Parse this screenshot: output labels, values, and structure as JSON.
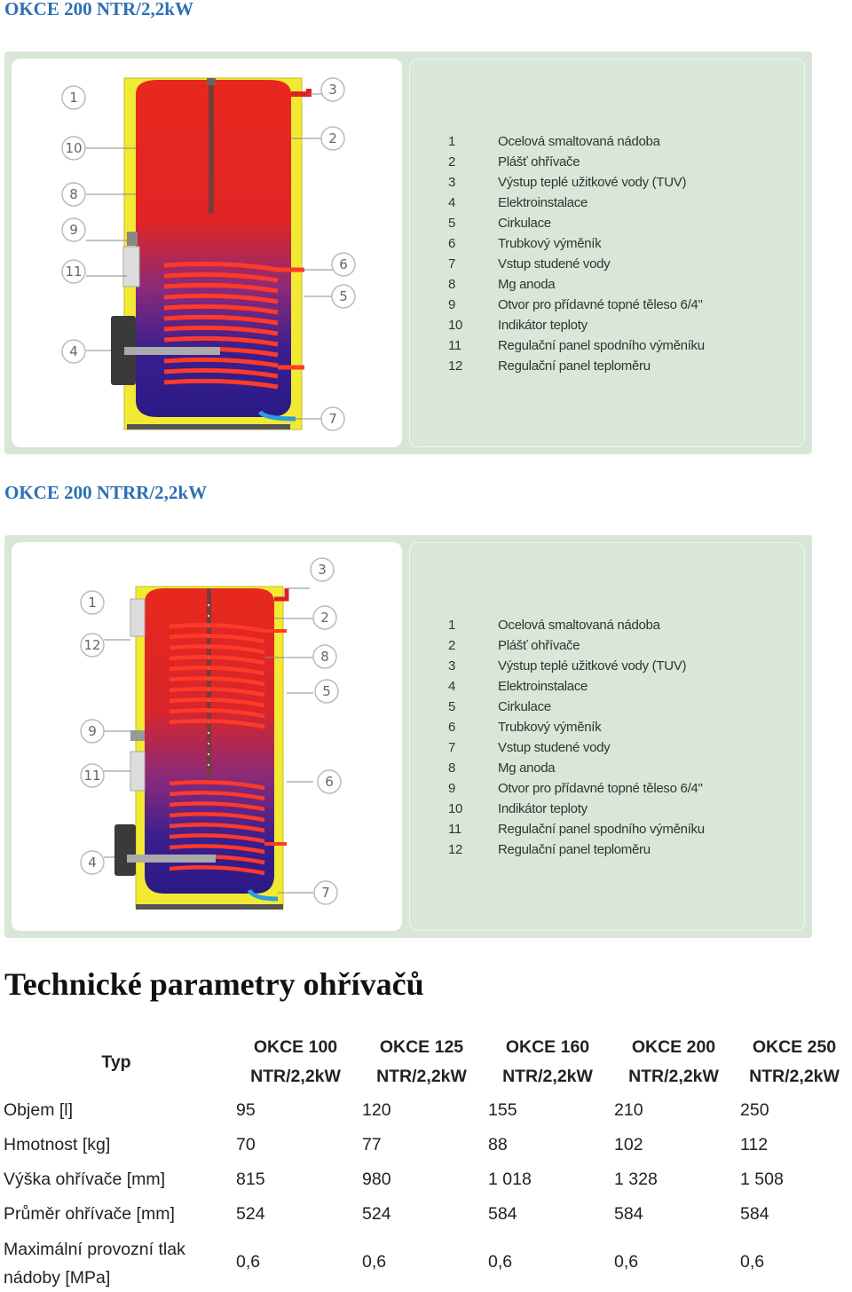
{
  "section1": {
    "heading": "OKCE 200 NTR/2,2kW",
    "callouts": [
      "1",
      "10",
      "8",
      "9",
      "11",
      "4",
      "3",
      "2",
      "6",
      "5",
      "7"
    ]
  },
  "section2": {
    "heading": "OKCE 200 NTRR/2,2kW",
    "callouts": [
      "1",
      "12",
      "9",
      "11",
      "4",
      "3",
      "2",
      "8",
      "5",
      "6",
      "7"
    ]
  },
  "legend": [
    {
      "num": "1",
      "text": "Ocelová smaltovaná nádoba"
    },
    {
      "num": "2",
      "text": "Plášť ohřívače"
    },
    {
      "num": "3",
      "text": "Výstup teplé užitkové vody (TUV)"
    },
    {
      "num": "4",
      "text": "Elektroinstalace"
    },
    {
      "num": "5",
      "text": "Cirkulace"
    },
    {
      "num": "6",
      "text": "Trubkový výměník"
    },
    {
      "num": "7",
      "text": "Vstup studené vody"
    },
    {
      "num": "8",
      "text": "Mg anoda"
    },
    {
      "num": "9",
      "text": "Otvor pro přídavné topné těleso 6/4\""
    },
    {
      "num": "10",
      "text": "Indikátor teploty"
    },
    {
      "num": "11",
      "text": "Regulační panel spodního výměníku"
    },
    {
      "num": "12",
      "text": "Regulační panel teploměru"
    }
  ],
  "params": {
    "title": "Technické parametry ohřívačů",
    "type_label": "Typ",
    "columns": [
      {
        "l1": "OKCE 100",
        "l2": "NTR/2,2kW"
      },
      {
        "l1": "OKCE 125",
        "l2": "NTR/2,2kW"
      },
      {
        "l1": "OKCE 160",
        "l2": "NTR/2,2kW"
      },
      {
        "l1": "OKCE 200",
        "l2": "NTR/2,2kW"
      },
      {
        "l1": "OKCE 250",
        "l2": "NTR/2,2kW"
      }
    ],
    "rows": [
      {
        "label": "Objem [l]",
        "values": [
          "95",
          "120",
          "155",
          "210",
          "250"
        ]
      },
      {
        "label": "Hmotnost [kg]",
        "values": [
          "70",
          "77",
          "88",
          "102",
          "112"
        ]
      },
      {
        "label": "Výška ohřívače [mm]",
        "values": [
          "815",
          "980",
          "1 018",
          "1 328",
          "1 508"
        ]
      },
      {
        "label": "Průměr ohřívače [mm]",
        "values": [
          "524",
          "524",
          "584",
          "584",
          "584"
        ]
      },
      {
        "label_l1": "Maximální provozní tlak",
        "label_l2": "nádoby [MPa]",
        "values": [
          "0,6",
          "0,6",
          "0,6",
          "0,6",
          "0,6"
        ]
      }
    ]
  }
}
